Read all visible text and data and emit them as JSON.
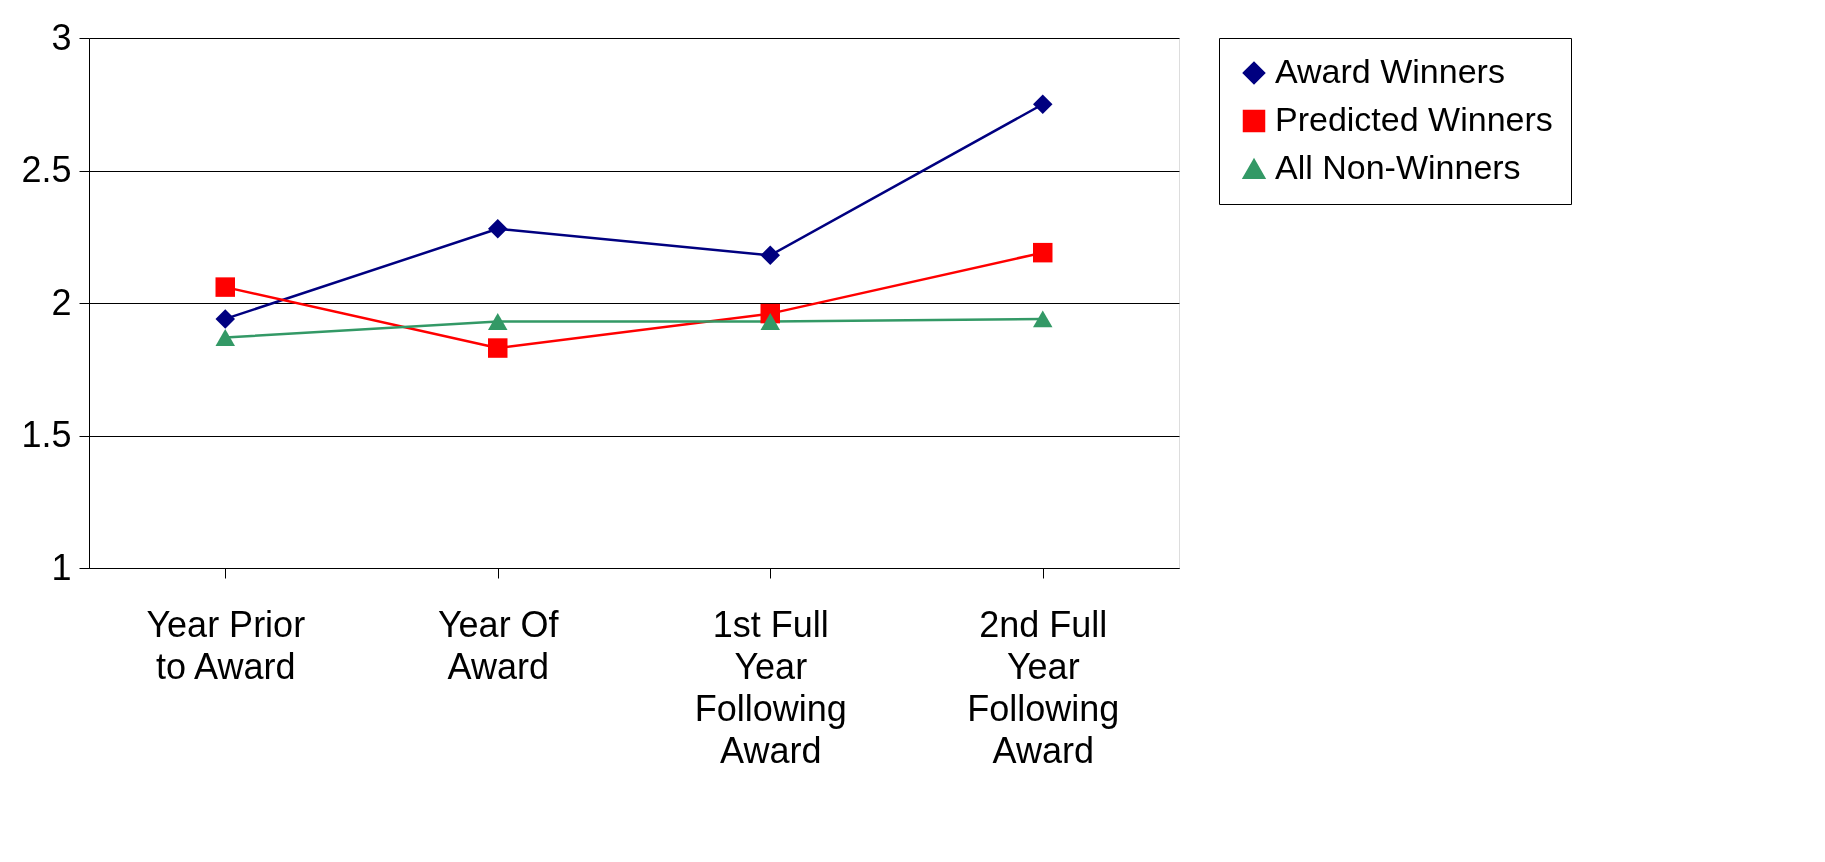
{
  "chart_data": {
    "type": "line",
    "categories": [
      "Year Prior to Award",
      "Year Of Award",
      "1st Full Year Following Award",
      "2nd Full Year Following Award"
    ],
    "series": [
      {
        "name": "Award Winners",
        "color": "#000080",
        "marker": "diamond",
        "values": [
          1.94,
          2.28,
          2.18,
          2.75
        ]
      },
      {
        "name": "Predicted Winners",
        "color": "#ff0000",
        "marker": "square",
        "values": [
          2.06,
          1.83,
          1.96,
          2.19
        ]
      },
      {
        "name": "All Non-Winners",
        "color": "#339966",
        "marker": "triangle",
        "values": [
          1.87,
          1.93,
          1.93,
          1.94
        ]
      }
    ],
    "ylim": [
      1,
      3
    ],
    "yticks": [
      1,
      1.5,
      2,
      2.5,
      3
    ],
    "grid": "y",
    "legend": "right",
    "line_style": "solid"
  }
}
